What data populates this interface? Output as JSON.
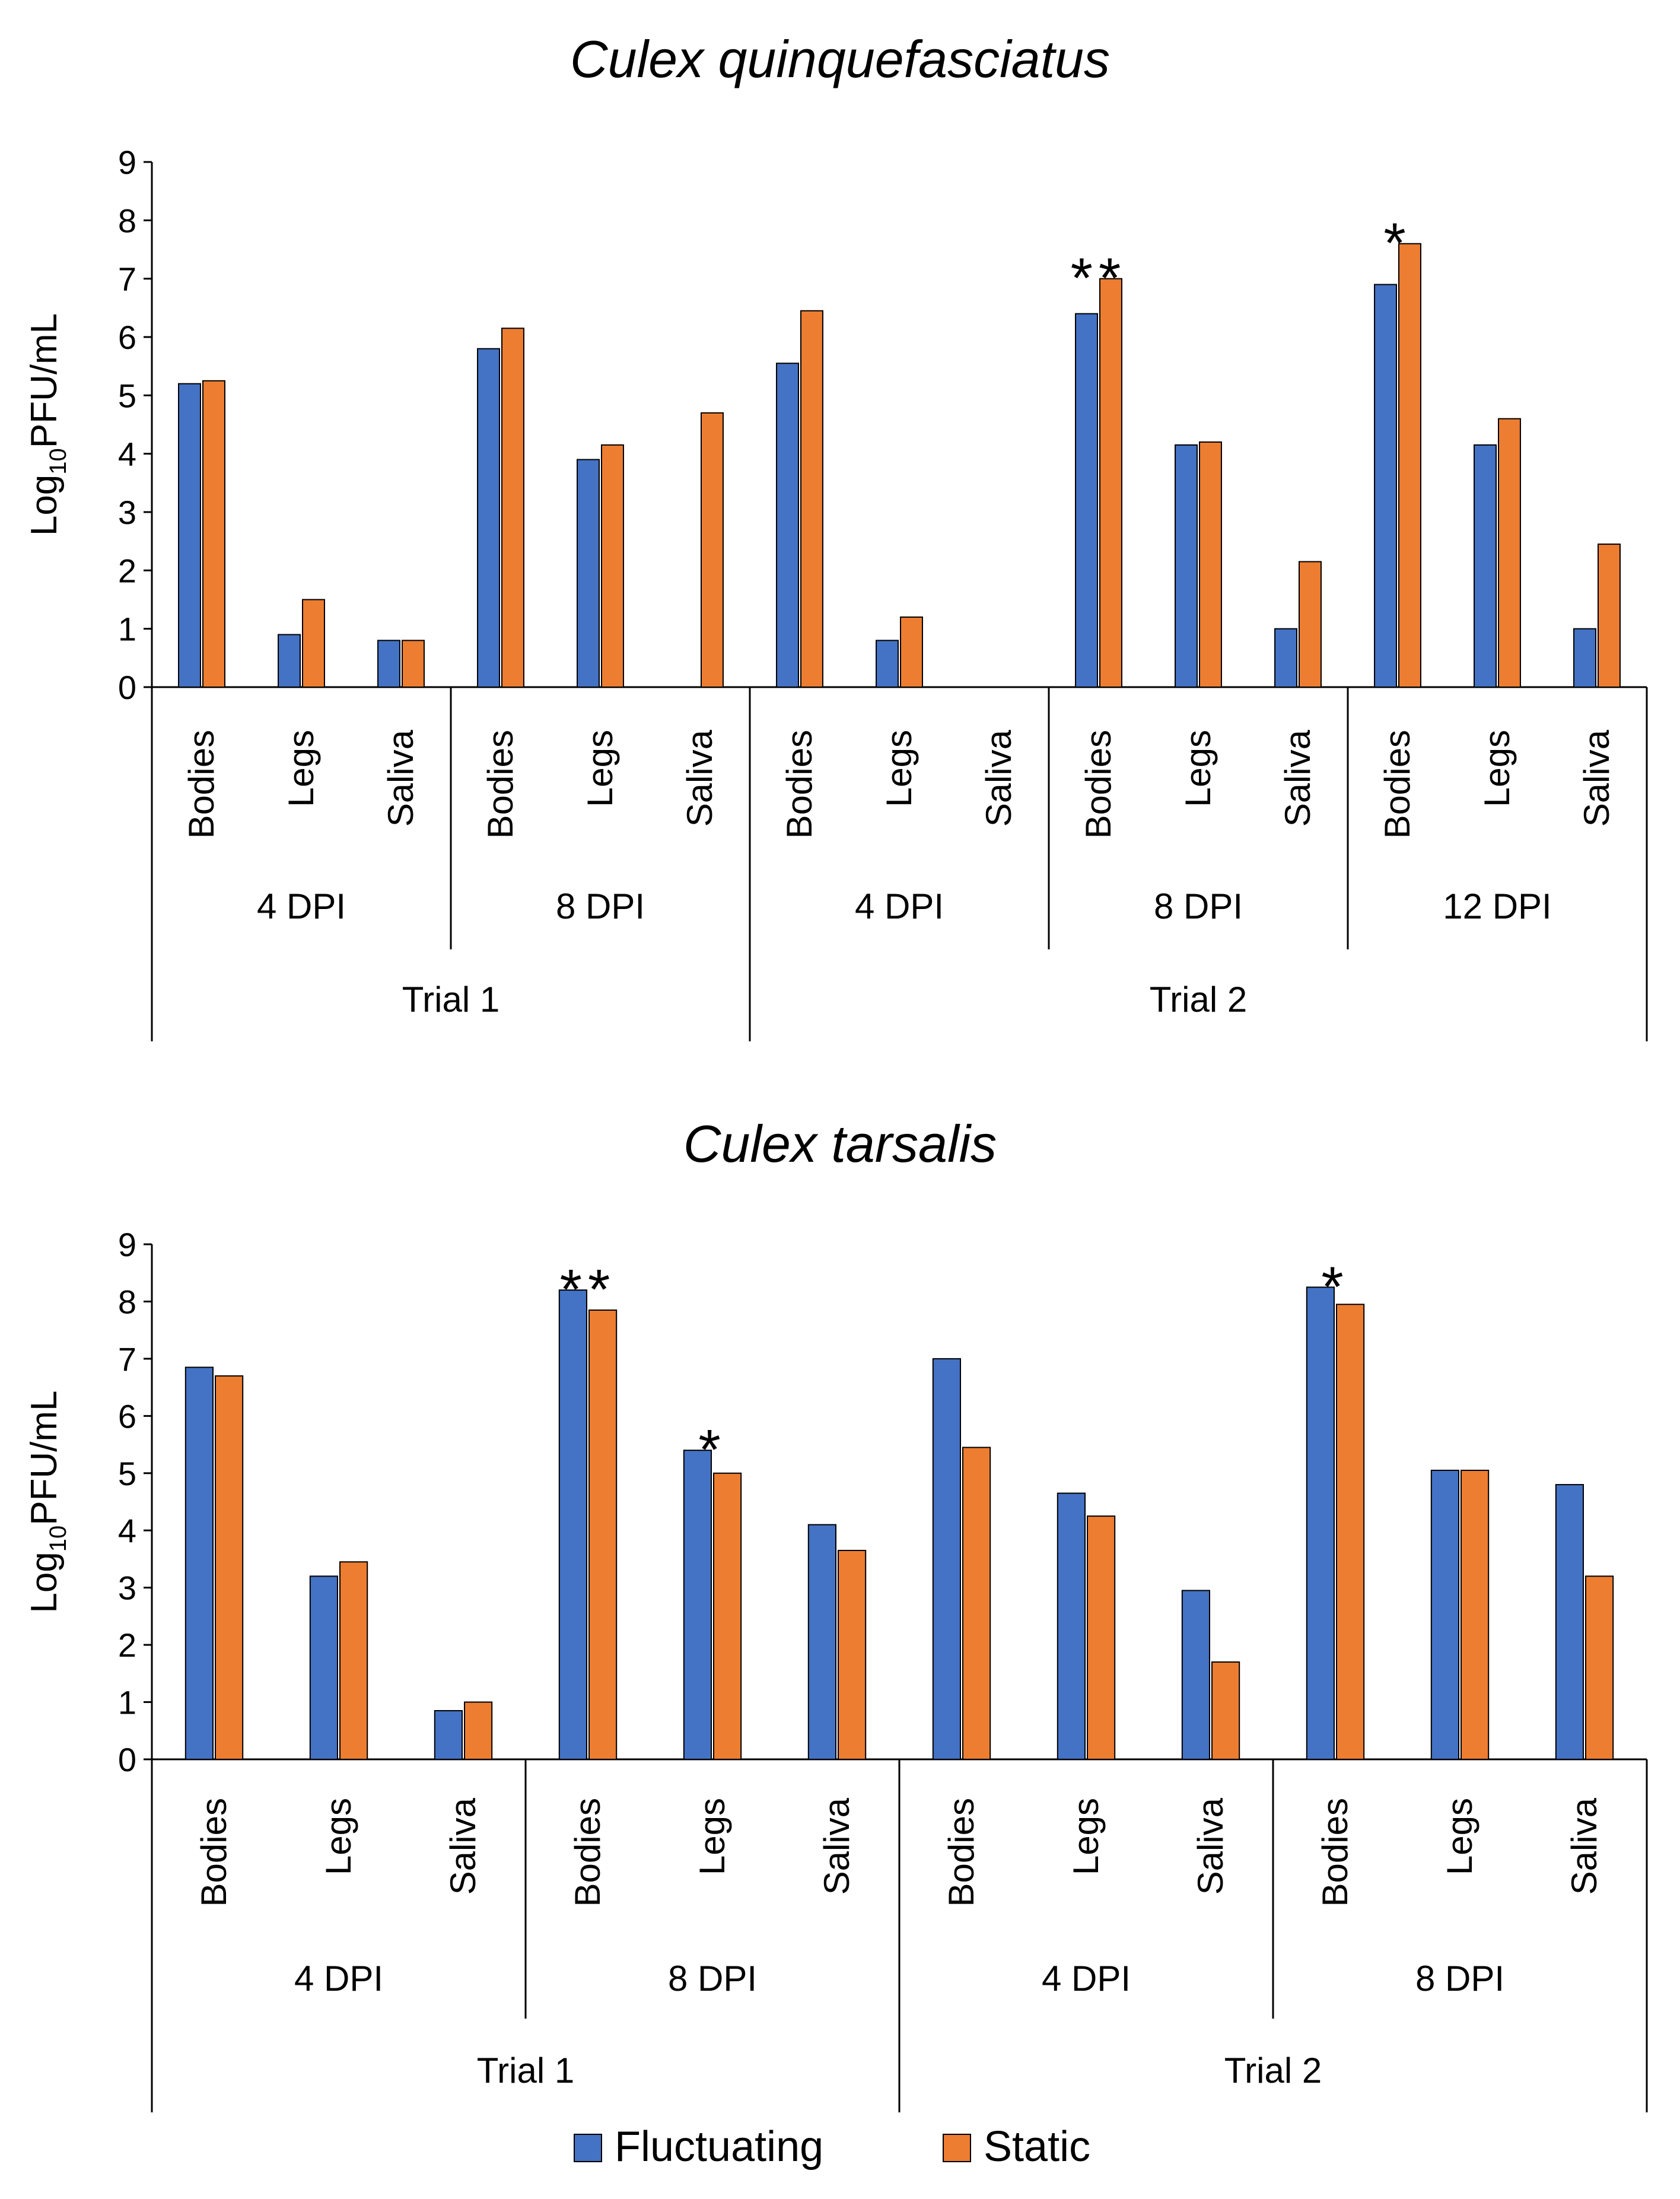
{
  "colors": {
    "fluctuating": "#4472C4",
    "static": "#ED7D31",
    "axis": "#000000"
  },
  "legend": {
    "fluctuating_label": "Fluctuating",
    "static_label": "Static"
  },
  "chart_data": [
    {
      "type": "bar",
      "title": "Culex quinquefasciatus",
      "ylabel_base": "Log",
      "ylabel_sub": "10",
      "ylabel_unit": "PFU/mL",
      "ylim": [
        0,
        9
      ],
      "yticks": [
        0,
        1,
        2,
        3,
        4,
        5,
        6,
        7,
        8,
        9
      ],
      "categories": [
        "Bodies",
        "Legs",
        "Saliva",
        "Bodies",
        "Legs",
        "Saliva",
        "Bodies",
        "Legs",
        "Saliva",
        "Bodies",
        "Legs",
        "Saliva",
        "Bodies",
        "Legs",
        "Saliva"
      ],
      "dpi_groups": [
        {
          "label": "4 DPI",
          "span": 3
        },
        {
          "label": "8 DPI",
          "span": 3
        },
        {
          "label": "4 DPI",
          "span": 3
        },
        {
          "label": "8 DPI",
          "span": 3
        },
        {
          "label": "12 DPI",
          "span": 3
        }
      ],
      "trial_groups": [
        {
          "label": "Trial 1",
          "span": 6
        },
        {
          "label": "Trial 2",
          "span": 9
        }
      ],
      "series": [
        {
          "name": "Fluctuating",
          "values": [
            5.2,
            0.9,
            0.8,
            5.8,
            3.9,
            null,
            5.55,
            0.8,
            null,
            6.4,
            4.15,
            1.0,
            6.9,
            4.15,
            1.0
          ]
        },
        {
          "name": "Static",
          "values": [
            5.25,
            1.5,
            0.8,
            6.15,
            4.15,
            4.7,
            6.45,
            1.2,
            null,
            7.0,
            4.2,
            2.15,
            7.6,
            4.6,
            2.45
          ]
        }
      ],
      "annotations": [
        {
          "category_index": 9,
          "text": "**"
        },
        {
          "category_index": 12,
          "text": "*"
        }
      ]
    },
    {
      "type": "bar",
      "title": "Culex tarsalis",
      "ylabel_base": "Log",
      "ylabel_sub": "10",
      "ylabel_unit": "PFU/mL",
      "ylim": [
        0,
        9
      ],
      "yticks": [
        0,
        1,
        2,
        3,
        4,
        5,
        6,
        7,
        8,
        9
      ],
      "categories": [
        "Bodies",
        "Legs",
        "Saliva",
        "Bodies",
        "Legs",
        "Saliva",
        "Bodies",
        "Legs",
        "Saliva",
        "Bodies",
        "Legs",
        "Saliva"
      ],
      "dpi_groups": [
        {
          "label": "4 DPI",
          "span": 3
        },
        {
          "label": "8 DPI",
          "span": 3
        },
        {
          "label": "4 DPI",
          "span": 3
        },
        {
          "label": "8 DPI",
          "span": 3
        }
      ],
      "trial_groups": [
        {
          "label": "Trial 1",
          "span": 6
        },
        {
          "label": "Trial 2",
          "span": 6
        }
      ],
      "series": [
        {
          "name": "Fluctuating",
          "values": [
            6.85,
            3.2,
            0.85,
            8.2,
            5.4,
            4.1,
            7.0,
            4.65,
            2.95,
            8.25,
            5.05,
            4.8
          ]
        },
        {
          "name": "Static",
          "values": [
            6.7,
            3.45,
            1.0,
            7.85,
            5.0,
            3.65,
            5.45,
            4.25,
            1.7,
            7.95,
            5.05,
            3.2
          ]
        }
      ],
      "annotations": [
        {
          "category_index": 3,
          "text": "**"
        },
        {
          "category_index": 4,
          "text": "*"
        },
        {
          "category_index": 9,
          "text": "*"
        }
      ]
    }
  ]
}
